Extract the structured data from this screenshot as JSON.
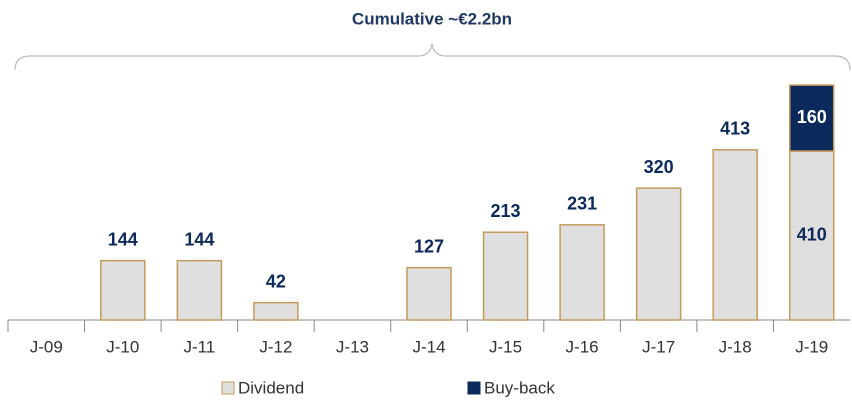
{
  "chart_data": {
    "type": "stacked_bar",
    "annotation": "Cumulative ~€2.2bn",
    "categories": [
      "J-09",
      "J-10",
      "J-11",
      "J-12",
      "J-13",
      "J-14",
      "J-15",
      "J-16",
      "J-17",
      "J-18",
      "J-19"
    ],
    "series": [
      {
        "name": "Dividend",
        "color": "#e0dfdf",
        "values": [
          null,
          144,
          144,
          42,
          null,
          127,
          213,
          231,
          320,
          413,
          410
        ]
      },
      {
        "name": "Buy-back",
        "color": "#0b2a5b",
        "values": [
          null,
          null,
          null,
          null,
          null,
          null,
          null,
          null,
          null,
          null,
          160
        ]
      }
    ],
    "ylim": [
      0,
      580
    ]
  }
}
